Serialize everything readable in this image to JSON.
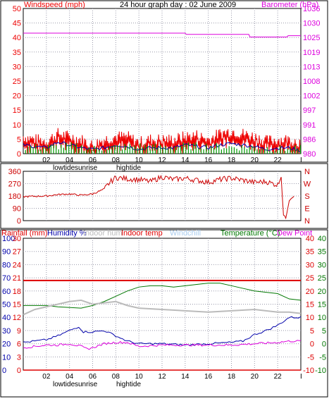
{
  "colors": {
    "wind": "#ee0000",
    "gust": "#ee0000",
    "avgwind": "#009900",
    "windblue": "#0000aa",
    "barometer": "#dd00dd",
    "direction": "#cc0000",
    "rainfall": "#dd0000",
    "humidity": "#0000aa",
    "indoorhum": "#bbbbbb",
    "indoortemp": "#dd0000",
    "windchill": "#aaccee",
    "temperature": "#007700",
    "dewpoint": "#dd00dd",
    "grid": "#9999aa",
    "frame": "#000000"
  },
  "chart_data": [
    {
      "type": "line",
      "title": "24 hour graph day : 02 June 2009",
      "ylabel_left": "Windspeed (mph)",
      "ylabel_right": "Barometer (hPa)",
      "x_ticks": [
        "02",
        "04",
        "06",
        "08",
        "10",
        "12",
        "14",
        "16",
        "18",
        "20",
        "22"
      ],
      "ylim_left": [
        0,
        50
      ],
      "y_ticks_left": [
        "0",
        "5",
        "10",
        "15",
        "20",
        "25",
        "30",
        "35",
        "40",
        "45",
        "50"
      ],
      "ylim_right": [
        980,
        1036
      ],
      "y_ticks_right": [
        "980",
        "986",
        "991",
        "997",
        "1002",
        "1008",
        "1013",
        "1019",
        "1025",
        "1030",
        "1036"
      ],
      "grid": true,
      "series": [
        {
          "name": "Barometer (hPa)",
          "axis": "right",
          "x": [
            0,
            14,
            14.1,
            19.5,
            19.6,
            22.8,
            22.9,
            24
          ],
          "values": [
            1026.5,
            1026.5,
            1026,
            1026,
            1025,
            1025,
            1025.5,
            1025.5
          ]
        },
        {
          "name": "Windspeed (mph)",
          "axis": "left",
          "x": [
            0,
            1,
            2,
            3,
            4,
            5,
            6,
            7,
            8,
            9,
            10,
            11,
            12,
            13,
            14,
            15,
            16,
            17,
            18,
            19,
            20,
            21,
            22,
            23,
            24
          ],
          "values": [
            3,
            2.5,
            2,
            4,
            3,
            2,
            1.5,
            2,
            3,
            2.5,
            1.5,
            2,
            2,
            2,
            3,
            2.5,
            2,
            3,
            3.5,
            3,
            2.5,
            1.5,
            2,
            2,
            1
          ]
        },
        {
          "name": "Gust",
          "axis": "left",
          "x": [
            0,
            1,
            2,
            3,
            4,
            5,
            6,
            7,
            8,
            9,
            10,
            11,
            12,
            13,
            14,
            15,
            16,
            17,
            18,
            19,
            20,
            21,
            22,
            23,
            24
          ],
          "values": [
            6,
            5,
            4.5,
            7,
            6,
            5,
            3,
            5,
            6,
            6,
            4,
            5,
            5,
            5,
            6,
            6.5,
            5,
            7,
            8,
            7,
            6,
            4.5,
            5,
            5,
            4
          ]
        },
        {
          "name": "Average wind",
          "axis": "left",
          "x": [
            0,
            2,
            4,
            6,
            8,
            10,
            12,
            14,
            16,
            18,
            20,
            22,
            24
          ],
          "values": [
            1,
            1,
            1.5,
            0.5,
            1,
            1.5,
            1,
            1.5,
            1.5,
            1,
            1,
            0.5,
            0.5
          ]
        }
      ]
    },
    {
      "type": "line",
      "ylim": [
        0,
        360
      ],
      "y_ticks": [
        "0",
        "90",
        "180",
        "270",
        "360"
      ],
      "right_labels": [
        "N",
        "W",
        "S",
        "E",
        "N"
      ],
      "grid": true,
      "series": [
        {
          "name": "Wind direction",
          "x": [
            0,
            1,
            2,
            3,
            4,
            5,
            6,
            7,
            7.5,
            8,
            9,
            10,
            11,
            12,
            13,
            14,
            15,
            16,
            17,
            18,
            19,
            20,
            21,
            22,
            22.3,
            22.5,
            22.7,
            23,
            23.5
          ],
          "values": [
            175,
            178,
            180,
            190,
            195,
            185,
            195,
            230,
            280,
            315,
            305,
            300,
            285,
            320,
            300,
            310,
            295,
            280,
            300,
            310,
            295,
            280,
            285,
            260,
            320,
            40,
            20,
            150,
            190
          ]
        }
      ]
    },
    {
      "type": "line",
      "ylabels_top": [
        "Rainfall (mm)",
        "Humidity %",
        "Indoor hum",
        "Indoor temp",
        "Windchill",
        "Temperature (°C)",
        "Dew Point"
      ],
      "x_ticks": [
        "02",
        "04",
        "06",
        "08",
        "10",
        "12",
        "14",
        "16",
        "18",
        "20",
        "22"
      ],
      "y_ticks_rain": [
        "0",
        "3",
        "6",
        "9",
        "12",
        "15",
        "18",
        "21",
        "24",
        "27",
        "30"
      ],
      "y_ticks_humidity": [
        "0",
        "10",
        "20",
        "30",
        "40",
        "50",
        "60",
        "70",
        "80",
        "90",
        "100"
      ],
      "y_ticks_temp1": [
        "-10",
        "-5",
        "0",
        "5",
        "10",
        "15",
        "20",
        "25",
        "30",
        "35",
        "40"
      ],
      "y_ticks_temp2": [
        "-10",
        "-5",
        "0",
        "5",
        "10",
        "15",
        "20",
        "25",
        "30",
        "35",
        "40"
      ],
      "ylim_temp": [
        -10,
        40
      ],
      "ylim_humidity": [
        0,
        100
      ],
      "grid": true,
      "series": [
        {
          "name": "Indoor temp",
          "x": [
            0,
            24
          ],
          "values": [
            24,
            24
          ]
        },
        {
          "name": "Temperature (°C)",
          "x": [
            0,
            2,
            3,
            5,
            6,
            7,
            8,
            9,
            10,
            11,
            12,
            13,
            14,
            16,
            17,
            18,
            19,
            20,
            21,
            22,
            23,
            24
          ],
          "values": [
            14.5,
            14.5,
            14,
            13.5,
            14.5,
            16,
            18,
            20,
            21.5,
            22,
            22,
            21.5,
            22,
            23,
            23,
            22,
            21,
            20,
            19.5,
            19,
            17,
            16.5
          ]
        },
        {
          "name": "Indoor hum",
          "x": [
            0,
            1,
            2,
            3,
            4,
            5,
            6,
            8,
            9,
            10,
            12,
            14,
            16,
            18,
            20,
            22,
            23,
            24
          ],
          "values": [
            42,
            46,
            48,
            50,
            52,
            53,
            50,
            52,
            49,
            47,
            46,
            45,
            44,
            45,
            46,
            44,
            44,
            43
          ]
        },
        {
          "name": "Humidity %",
          "x": [
            0,
            2,
            3,
            4,
            4.8,
            5.2,
            6,
            7,
            8,
            9,
            10,
            12,
            14,
            16,
            18,
            19,
            20,
            21,
            22,
            23,
            24
          ],
          "values": [
            21,
            23,
            26,
            30,
            33,
            29,
            29,
            30,
            26,
            22,
            20,
            20,
            19,
            20,
            21,
            22,
            27,
            30,
            34,
            40,
            40
          ]
        },
        {
          "name": "Dew Point",
          "x": [
            0,
            1,
            2,
            3,
            4,
            5,
            5.5,
            6,
            7,
            8,
            9,
            10,
            12,
            14,
            16,
            18,
            20,
            22,
            23,
            24
          ],
          "values": [
            -1.5,
            -1,
            -0.5,
            -0.5,
            0,
            -1,
            -2,
            -1.5,
            0,
            0.5,
            0.5,
            -1,
            -0.5,
            -0.5,
            -0.5,
            -0.5,
            0,
            0.5,
            1,
            1
          ]
        },
        {
          "name": "Rainfall (mm)",
          "x": [
            0,
            24
          ],
          "values": [
            0,
            0
          ]
        }
      ]
    }
  ],
  "annotations": {
    "top_lowtide": "lowtide",
    "top_sunrise": "sunrise",
    "top_hightide": "hightide",
    "bot_lowtide": "lowtide",
    "bot_sunrise": "sunrise",
    "bot_hightide": "hightide",
    "top_end_tick": "I",
    "bot_end_tick": "I"
  }
}
